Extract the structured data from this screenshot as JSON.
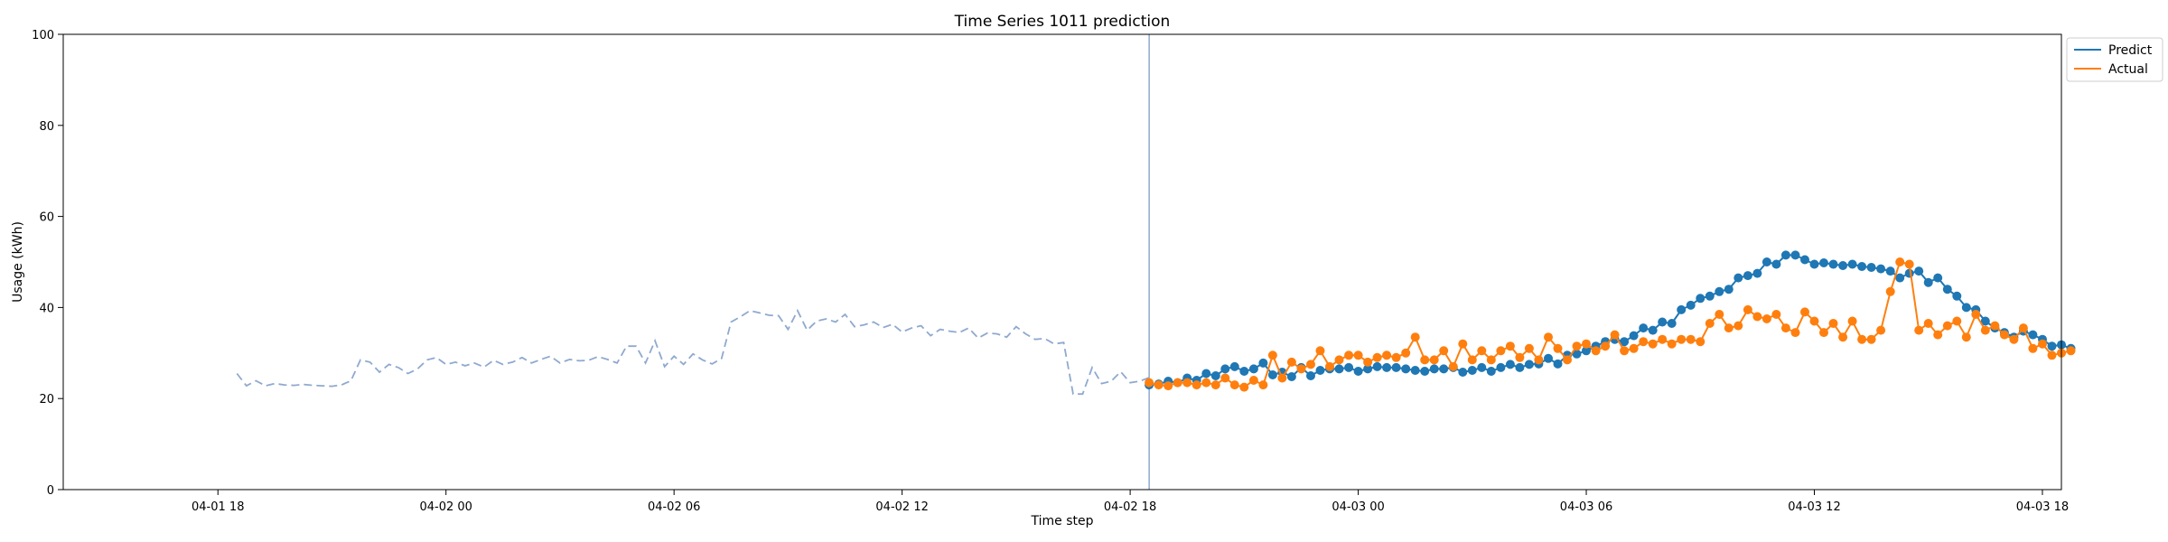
{
  "chart_data": {
    "type": "line",
    "title": "Time Series 1011 prediction",
    "xlabel": "Time step",
    "ylabel": "Usage (kWh)",
    "ylim": [
      0,
      100
    ],
    "yticks": [
      0,
      20,
      40,
      60,
      80,
      100
    ],
    "xlim_hours_from_start": [
      -4.57,
      48.0
    ],
    "xticks": [
      {
        "label": "04-01 18",
        "hour": -0.5
      },
      {
        "label": "04-02 00",
        "hour": 5.5
      },
      {
        "label": "04-02 06",
        "hour": 11.5
      },
      {
        "label": "04-02 12",
        "hour": 17.5
      },
      {
        "label": "04-02 18",
        "hour": 23.5
      },
      {
        "label": "04-03 00",
        "hour": 29.5
      },
      {
        "label": "04-03 06",
        "hour": 35.5
      },
      {
        "label": "04-03 12",
        "hour": 41.5
      },
      {
        "label": "04-03 18",
        "hour": 47.5
      }
    ],
    "legend_position": "upper-right-outside",
    "grid": false,
    "history": {
      "x_start_hour": 0,
      "x_step_hours": 0.25,
      "style": "dashed",
      "color": "#8fa9cf",
      "values": [
        25.5,
        22.8,
        23.9,
        22.8,
        23.3,
        23.0,
        22.9,
        23.1,
        22.9,
        22.8,
        22.7,
        23.0,
        23.9,
        28.5,
        28.0,
        25.8,
        27.5,
        26.8,
        25.5,
        26.5,
        28.5,
        29.0,
        27.5,
        28.0,
        27.2,
        27.8,
        26.9,
        28.4,
        27.5,
        28.0,
        29.0,
        27.8,
        28.6,
        29.3,
        27.8,
        28.6,
        28.3,
        28.4,
        29.2,
        28.6,
        27.8,
        31.5,
        31.5,
        27.8,
        32.7,
        27.0,
        29.3,
        27.5,
        29.8,
        28.5,
        27.6,
        28.8,
        36.8,
        38.0,
        39.3,
        38.8,
        38.3,
        38.2,
        35.2,
        39.3,
        35.0,
        37.0,
        37.5,
        36.8,
        38.5,
        35.8,
        36.2,
        36.8,
        35.6,
        36.3,
        34.6,
        35.5,
        36.0,
        33.8,
        35.2,
        34.8,
        34.5,
        35.5,
        33.3,
        34.4,
        34.2,
        33.5,
        35.8,
        34.2,
        33.0,
        33.2,
        32.0,
        32.3,
        21.0,
        21.0,
        26.8,
        23.3,
        23.8,
        25.9,
        23.5,
        23.8,
        24.6
      ]
    },
    "prediction_start_hour": 24.0,
    "series": [
      {
        "name": "Predict",
        "color": "#1f77b4",
        "x_start_hour": 24.0,
        "x_step_hours": 0.25,
        "values": [
          23.0,
          23.2,
          23.8,
          23.5,
          24.5,
          24.0,
          25.5,
          25.0,
          26.5,
          27.0,
          26.0,
          26.5,
          27.8,
          25.2,
          25.8,
          24.8,
          26.8,
          25.0,
          26.2,
          26.5,
          26.5,
          26.8,
          26.0,
          26.5,
          27.0,
          26.8,
          26.8,
          26.5,
          26.2,
          26.0,
          26.5,
          26.5,
          26.8,
          25.8,
          26.2,
          26.8,
          26.0,
          26.8,
          27.5,
          26.8,
          27.5,
          27.6,
          28.8,
          27.6,
          29.5,
          29.8,
          30.5,
          31.5,
          32.5,
          33.0,
          32.5,
          33.8,
          35.5,
          35.0,
          36.8,
          36.5,
          39.5,
          40.5,
          42.0,
          42.5,
          43.5,
          44.0,
          46.5,
          47.0,
          47.5,
          50.0,
          49.5,
          51.5,
          51.5,
          50.5,
          49.5,
          49.8,
          49.5,
          49.2,
          49.5,
          49.0,
          48.8,
          48.5,
          48.0,
          46.5,
          47.5,
          48.0,
          45.5,
          46.5,
          44.0,
          42.5,
          40.0,
          39.5,
          37.0,
          35.5,
          34.5,
          33.5,
          34.8,
          34.0,
          33.0,
          31.5,
          31.8,
          31.0
        ]
      },
      {
        "name": "Actual",
        "color": "#ff7f0e",
        "x_start_hour": 24.0,
        "x_step_hours": 0.25,
        "values": [
          23.5,
          23.0,
          22.8,
          23.5,
          23.5,
          23.0,
          23.5,
          23.0,
          24.5,
          23.0,
          22.5,
          24.0,
          23.0,
          29.5,
          24.5,
          28.0,
          26.5,
          27.5,
          30.5,
          27.0,
          28.5,
          29.5,
          29.5,
          28.0,
          29.0,
          29.5,
          29.0,
          30.0,
          33.5,
          28.5,
          28.5,
          30.5,
          27.0,
          32.0,
          28.5,
          30.5,
          28.5,
          30.5,
          31.5,
          29.0,
          31.0,
          28.5,
          33.5,
          31.0,
          28.5,
          31.5,
          32.0,
          30.5,
          31.5,
          34.0,
          30.5,
          31.0,
          32.5,
          32.0,
          33.0,
          32.0,
          33.0,
          33.0,
          32.5,
          36.5,
          38.5,
          35.5,
          36.0,
          39.5,
          38.0,
          37.5,
          38.5,
          35.5,
          34.5,
          39.0,
          37.0,
          34.5,
          36.5,
          33.5,
          37.0,
          33.0,
          33.0,
          35.0,
          43.5,
          50.0,
          49.5,
          35.0,
          36.5,
          34.0,
          36.0,
          37.0,
          33.5,
          38.5,
          35.0,
          36.0,
          34.0,
          33.0,
          35.5,
          31.0,
          32.0,
          29.5,
          30.0,
          30.5
        ]
      }
    ]
  }
}
